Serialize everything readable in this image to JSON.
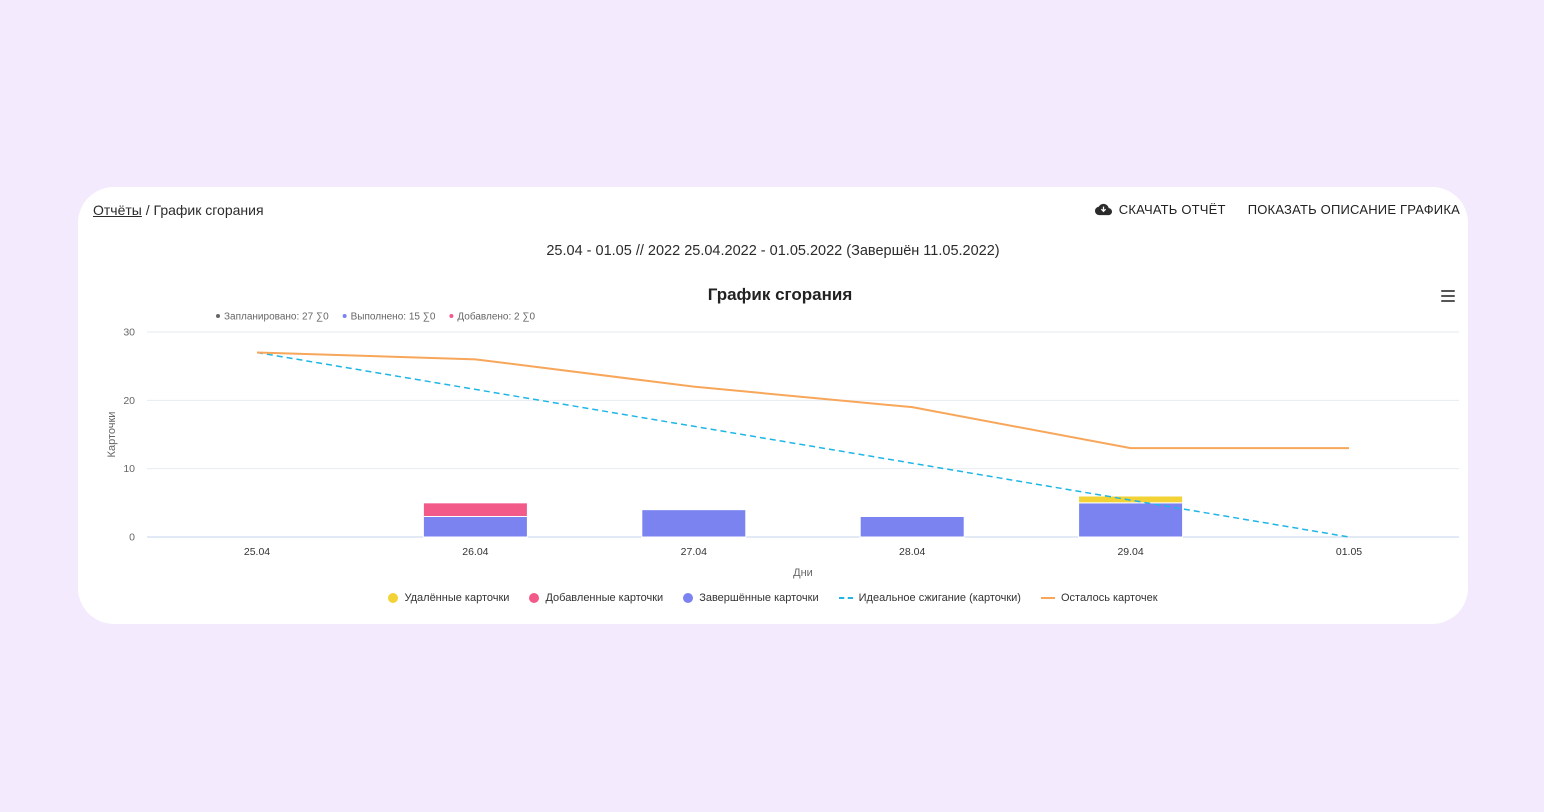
{
  "breadcrumb": {
    "link": "Отчёты",
    "separator": " / ",
    "current": "График сгорания"
  },
  "actions": {
    "download": "СКАЧАТЬ ОТЧЁТ",
    "download_icon": "cloud-download-icon",
    "show_description": "ПОКАЗАТЬ ОПИСАНИЕ ГРАФИКА"
  },
  "period": "25.04 - 01.05 // 2022 25.04.2022 - 01.05.2022 (Завершён 11.05.2022)",
  "summary": [
    {
      "label": "Запланировано: 27 ∑0",
      "color": "#666666"
    },
    {
      "label": "Выполнено: 15 ∑0",
      "color": "#7b83f0"
    },
    {
      "label": "Добавлено: 2 ∑0",
      "color": "#f25a8a"
    }
  ],
  "chart_data": {
    "type": "bar",
    "title": "График сгорания",
    "xlabel": "Дни",
    "ylabel": "Карточки",
    "categories": [
      "25.04",
      "26.04",
      "27.04",
      "28.04",
      "29.04",
      "01.05"
    ],
    "ylim": [
      0,
      30
    ],
    "yticks": [
      0,
      10,
      20,
      30
    ],
    "grid": true,
    "legend_position": "bottom",
    "series": [
      {
        "name": "Удалённые карточки",
        "kind": "bar",
        "color": "#f2d234",
        "values": [
          0,
          0,
          0,
          0,
          1,
          0
        ]
      },
      {
        "name": "Добавленные карточки",
        "kind": "bar",
        "color": "#f25a8a",
        "values": [
          0,
          2,
          0,
          0,
          0,
          0
        ]
      },
      {
        "name": "Завершённые карточки",
        "kind": "bar",
        "color": "#7b83f0",
        "values": [
          0,
          3,
          4,
          3,
          5,
          0
        ]
      },
      {
        "name": "Идеальное сжигание (карточки)",
        "kind": "dashed-line",
        "color": "#1fb6e6",
        "values": [
          27,
          21.6,
          16.2,
          10.8,
          5.4,
          0
        ]
      },
      {
        "name": "Осталось карточек",
        "kind": "line",
        "color": "#f7a65a",
        "values": [
          27,
          26,
          22,
          19,
          13,
          13
        ]
      }
    ]
  }
}
